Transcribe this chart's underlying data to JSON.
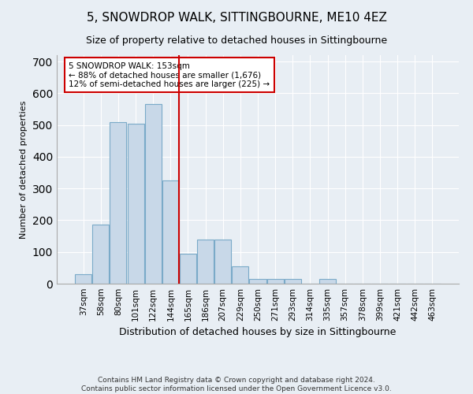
{
  "title": "5, SNOWDROP WALK, SITTINGBOURNE, ME10 4EZ",
  "subtitle": "Size of property relative to detached houses in Sittingbourne",
  "xlabel": "Distribution of detached houses by size in Sittingbourne",
  "ylabel": "Number of detached properties",
  "footnote": "Contains HM Land Registry data © Crown copyright and database right 2024.\nContains public sector information licensed under the Open Government Licence v3.0.",
  "bar_labels": [
    "37sqm",
    "58sqm",
    "80sqm",
    "101sqm",
    "122sqm",
    "144sqm",
    "165sqm",
    "186sqm",
    "207sqm",
    "229sqm",
    "250sqm",
    "271sqm",
    "293sqm",
    "314sqm",
    "335sqm",
    "357sqm",
    "378sqm",
    "399sqm",
    "421sqm",
    "442sqm",
    "463sqm"
  ],
  "bar_values": [
    30,
    185,
    510,
    505,
    565,
    325,
    95,
    140,
    140,
    55,
    15,
    15,
    15,
    0,
    15,
    0,
    0,
    0,
    0,
    0,
    0
  ],
  "bar_color": "#c8d8e8",
  "bar_edge_color": "#7aaac8",
  "annotation_text": "5 SNOWDROP WALK: 153sqm\n← 88% of detached houses are smaller (1,676)\n12% of semi-detached houses are larger (225) →",
  "annotation_box_color": "#ffffff",
  "annotation_border_color": "#cc0000",
  "vline_color": "#cc0000",
  "ylim": [
    0,
    720
  ],
  "yticks": [
    0,
    100,
    200,
    300,
    400,
    500,
    600,
    700
  ],
  "bg_color": "#e8eef4",
  "plot_bg_color": "#e8eef4",
  "title_fontsize": 11,
  "subtitle_fontsize": 9,
  "ylabel_fontsize": 8,
  "xlabel_fontsize": 9,
  "tick_fontsize": 7.5,
  "footnote_fontsize": 6.5
}
